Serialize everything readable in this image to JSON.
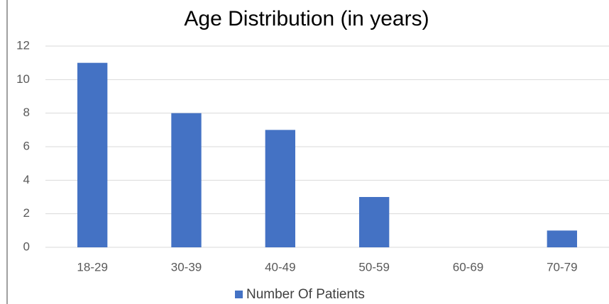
{
  "chart_data": {
    "type": "bar",
    "title": "Age Distribution (in years)",
    "categories": [
      "18-29",
      "30-39",
      "40-49",
      "50-59",
      "60-69",
      "70-79"
    ],
    "series": [
      {
        "name": "Number Of Patients",
        "color": "#4472c4",
        "values": [
          11,
          8,
          7,
          3,
          0,
          1
        ]
      }
    ],
    "ylim": [
      0,
      12
    ],
    "yticks": [
      0,
      2,
      4,
      6,
      8,
      10,
      12
    ],
    "grid": true,
    "legend": "bottom"
  }
}
